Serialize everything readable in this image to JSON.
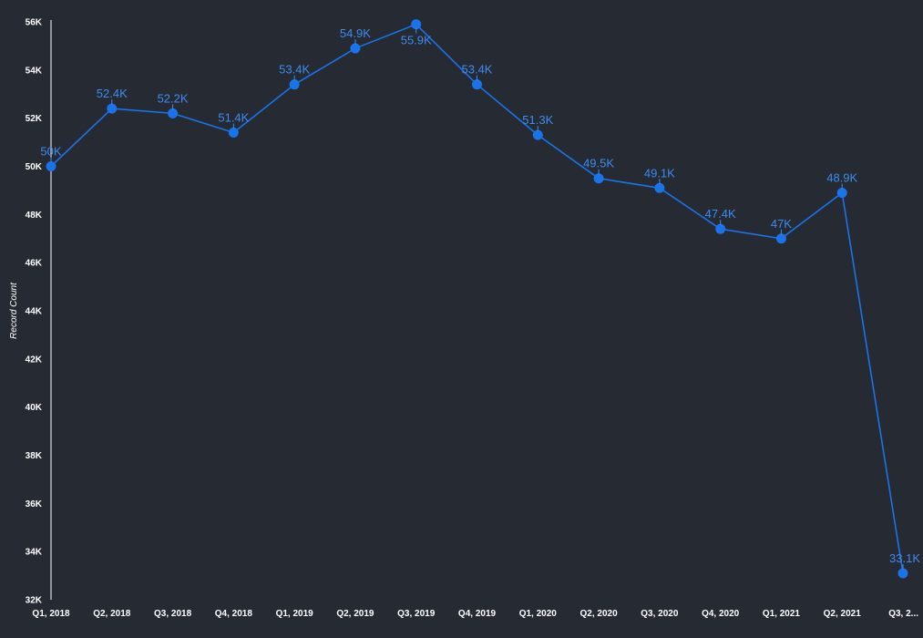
{
  "colors": {
    "background": "#262a33",
    "series": "#1a73e8",
    "label": "#3d8cf0",
    "axis_text": "#ffffff",
    "axis_line": "#ffffff"
  },
  "chart_data": {
    "type": "line",
    "title": "",
    "xlabel": "",
    "ylabel": "Record Count",
    "ylim": [
      32000,
      56000
    ],
    "yticks": [
      32000,
      34000,
      36000,
      38000,
      40000,
      42000,
      44000,
      46000,
      48000,
      50000,
      52000,
      54000,
      56000
    ],
    "ytick_labels": [
      "32K",
      "34K",
      "36K",
      "38K",
      "40K",
      "42K",
      "44K",
      "46K",
      "48K",
      "50K",
      "52K",
      "54K",
      "56K"
    ],
    "grid": false,
    "legend": "none",
    "categories": [
      "Q1, 2018",
      "Q2, 2018",
      "Q3, 2018",
      "Q4, 2018",
      "Q1, 2019",
      "Q2, 2019",
      "Q3, 2019",
      "Q4, 2019",
      "Q1, 2020",
      "Q2, 2020",
      "Q3, 2020",
      "Q4, 2020",
      "Q1, 2021",
      "Q2, 2021",
      "Q3, 2..."
    ],
    "series": [
      {
        "values": [
          50000,
          52400,
          52200,
          51400,
          53400,
          54900,
          55900,
          53400,
          51300,
          49500,
          49100,
          47400,
          47000,
          48900,
          33100
        ],
        "labels": [
          "50K",
          "52.4K",
          "52.2K",
          "51.4K",
          "53.4K",
          "54.9K",
          "55.9K",
          "53.4K",
          "51.3K",
          "49.5K",
          "49.1K",
          "47.4K",
          "47K",
          "48.9K",
          "33.1K"
        ]
      }
    ]
  }
}
